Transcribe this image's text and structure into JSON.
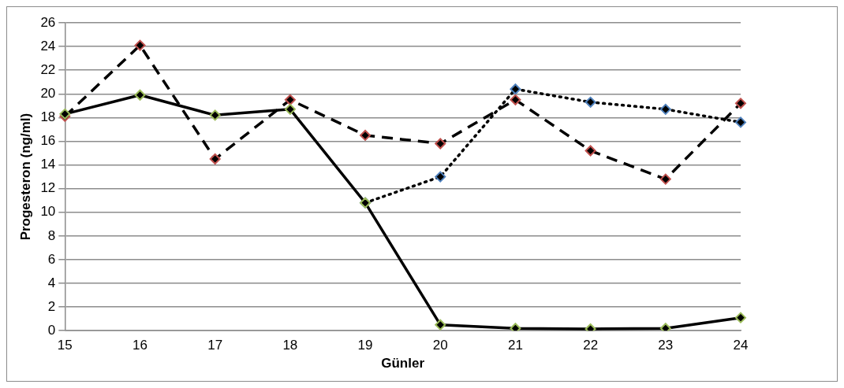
{
  "chart_data": {
    "type": "line",
    "xlabel": "Günler",
    "ylabel": "Progesteron (ng/ml)",
    "categories": [
      "15",
      "16",
      "17",
      "18",
      "19",
      "20",
      "21",
      "22",
      "23",
      "24"
    ],
    "ylim": [
      0,
      26
    ],
    "yticks": [
      0,
      2,
      4,
      6,
      8,
      10,
      12,
      14,
      16,
      18,
      20,
      22,
      24,
      26
    ],
    "grid": "y",
    "legend": false,
    "marker": "diamond",
    "series": [
      {
        "color": "#4f81bd",
        "line_style": "dotted",
        "values": [
          null,
          null,
          null,
          null,
          10.8,
          13.0,
          20.4,
          19.3,
          18.7,
          17.6
        ]
      },
      {
        "color": "#c0504d",
        "line_style": "dashed",
        "values": [
          18.1,
          24.1,
          14.5,
          19.5,
          16.5,
          15.8,
          19.5,
          15.2,
          12.8,
          19.2
        ]
      },
      {
        "color": "#9bbb59",
        "line_style": "solid",
        "values": [
          18.3,
          19.9,
          18.2,
          18.7,
          10.8,
          0.5,
          0.2,
          0.15,
          0.2,
          1.1
        ]
      }
    ]
  }
}
